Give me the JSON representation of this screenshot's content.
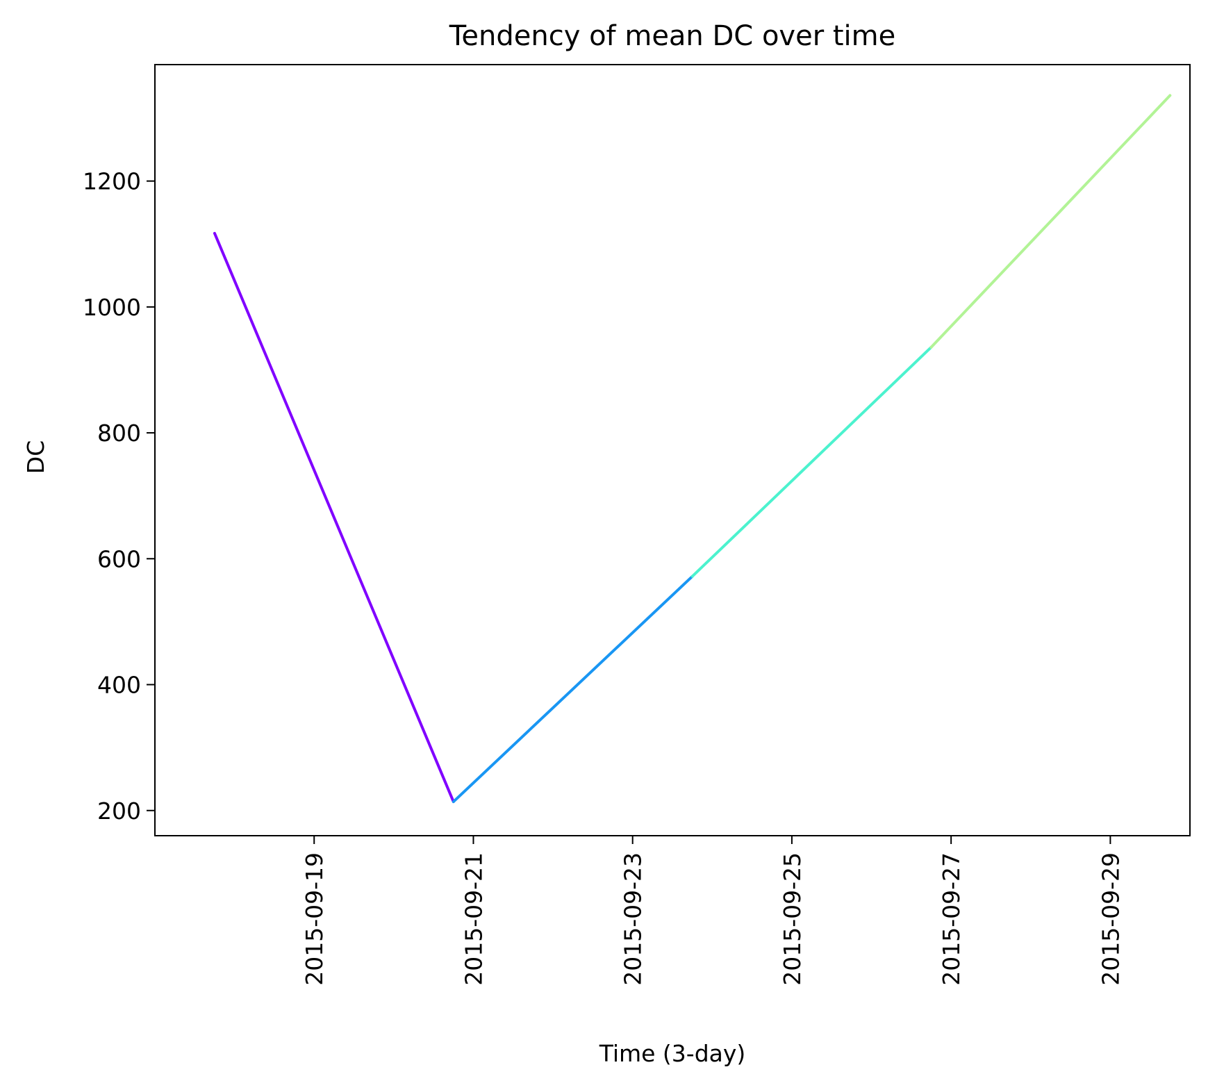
{
  "chart_data": {
    "type": "line",
    "title": "Tendency of mean DC over time",
    "xlabel": "Time (3-day)",
    "ylabel": "DC",
    "x_scale": "date",
    "xlim": [
      "2015-09-17",
      "2015-09-30"
    ],
    "ylim": [
      160,
      1385
    ],
    "grid": false,
    "x_ticks": [
      "2015-09-19",
      "2015-09-21",
      "2015-09-23",
      "2015-09-25",
      "2015-09-27",
      "2015-09-29"
    ],
    "y_ticks": [
      200,
      400,
      600,
      800,
      1000,
      1200
    ],
    "x": [
      "2015-09-17T18:00",
      "2015-09-20T18:00",
      "2015-09-23T18:00",
      "2015-09-26T18:00",
      "2015-09-29T18:00"
    ],
    "y": [
      1117,
      214,
      572,
      936,
      1336
    ],
    "segment_colors": [
      "#8000ff",
      "#1996f3",
      "#4cf2ce",
      "#b2f396"
    ]
  }
}
